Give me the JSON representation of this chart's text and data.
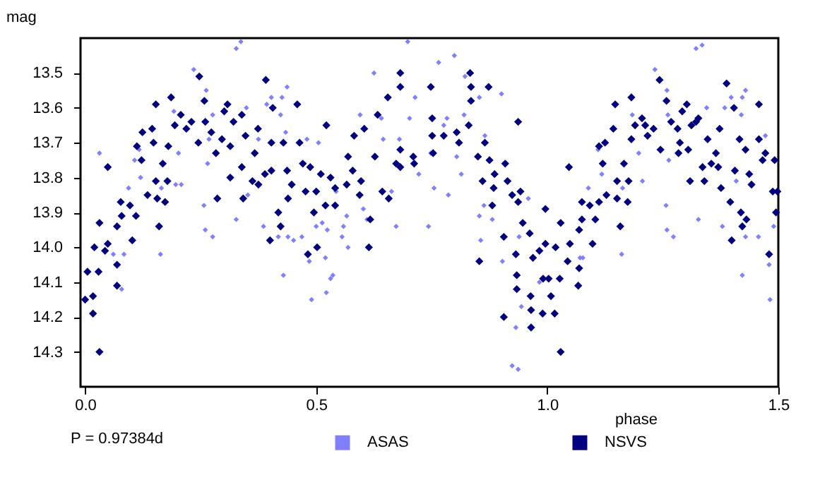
{
  "chart_data": {
    "type": "scatter",
    "xlabel": "phase",
    "ylabel": "mag",
    "annotations": [
      "P = 0.97384d"
    ],
    "xlim": [
      -0.01,
      1.5
    ],
    "ylim": [
      14.4,
      13.4
    ],
    "xticks": [
      {
        "value": 0,
        "label": "0.0"
      },
      0.5,
      {
        "value": 1,
        "label": "1.0"
      },
      1.5
    ],
    "yticks": [
      13.5,
      13.6,
      13.7,
      13.8,
      13.9,
      {
        "value": 14,
        "label": "14.0"
      },
      14.1,
      14.2,
      14.3
    ],
    "grid": false,
    "legend": "bottom",
    "marker": "diamond",
    "series": [
      {
        "name": "ASAS",
        "color": "#8080ff",
        "x": [
          0.031,
          0.061,
          0.084,
          0.079,
          0.094,
          0.107,
          0.117,
          0.12,
          0.163,
          0.165,
          0.192,
          0.196,
          0.202,
          0.208,
          0.235,
          0.257,
          0.26,
          0.262,
          0.265,
          0.268,
          0.276,
          0.276,
          0.327,
          0.337,
          0.327,
          0.349,
          0.352,
          0.375,
          0.386,
          0.393,
          0.403,
          0.418,
          0.423,
          0.426,
          0.429,
          0.434,
          0.437,
          0.439,
          0.451,
          0.469,
          0.48,
          0.485,
          0.49,
          0.5,
          0.505,
          0.513,
          0.52,
          0.522,
          0.524,
          0.531,
          0.536,
          0.543,
          0.556,
          0.559,
          0.566,
          0.569,
          0.595,
          0.602,
          0.61,
          0.625,
          0.641,
          0.645,
          0.663,
          0.673,
          0.68,
          0.698,
          0.702,
          0.714,
          0.722,
          0.743,
          0.748,
          0.755,
          0.765,
          0.776,
          0.783,
          0.786,
          0.799,
          0.804,
          0.814,
          0.82,
          0.822,
          0.853,
          0.853,
          0.856,
          0.863,
          0.865,
          0.881,
          0.901,
          0.903,
          0.924,
          0.932,
          0.937,
          0.939,
          0.944,
          0.959,
          0.983,
          1.071,
          1.077,
          1.089,
          1.11,
          1.118,
          1.161,
          1.163,
          1.184,
          1.198,
          1.206,
          1.233,
          1.257,
          1.259,
          1.261,
          1.263,
          1.259,
          1.273,
          1.322,
          1.335,
          1.327,
          1.345,
          1.379,
          1.384,
          1.398,
          1.409,
          1.42,
          1.422,
          1.422,
          1.429,
          1.429,
          1.457,
          1.472,
          1.48,
          1.482,
          1.49
        ],
        "values": [
          13.73,
          14.02,
          14.02,
          14.12,
          13.83,
          13.75,
          13.72,
          13.8,
          14.02,
          13.83,
          13.61,
          13.82,
          13.73,
          13.82,
          13.49,
          13.88,
          13.95,
          13.55,
          13.76,
          13.69,
          13.97,
          13.62,
          13.43,
          13.41,
          13.92,
          13.6,
          13.85,
          13.69,
          13.94,
          13.59,
          13.57,
          13.97,
          13.62,
          13.57,
          14.08,
          13.67,
          13.54,
          13.97,
          13.98,
          13.97,
          13.69,
          14.04,
          14.15,
          13.94,
          13.7,
          13.93,
          14.03,
          14.13,
          13.95,
          14.09,
          14.08,
          13.84,
          13.97,
          13.94,
          13.91,
          14.0,
          13.62,
          13.89,
          13.92,
          13.5,
          13.63,
          13.69,
          13.84,
          13.94,
          13.69,
          13.41,
          13.63,
          13.57,
          13.79,
          13.94,
          13.73,
          13.83,
          13.47,
          13.65,
          13.63,
          13.85,
          13.45,
          13.74,
          13.79,
          13.62,
          13.51,
          13.57,
          13.91,
          13.98,
          13.88,
          13.68,
          13.92,
          13.56,
          14.04,
          14.34,
          14.23,
          14.35,
          13.97,
          14.17,
          13.86,
          14.1,
          14.03,
          14.03,
          13.83,
          13.72,
          13.79,
          14.02,
          13.83,
          13.62,
          13.73,
          13.81,
          13.49,
          13.88,
          13.55,
          13.62,
          13.75,
          13.95,
          13.97,
          13.43,
          13.42,
          13.92,
          13.6,
          13.94,
          13.6,
          13.57,
          13.81,
          13.62,
          14.08,
          13.57,
          13.55,
          13.97,
          13.97,
          13.68,
          14.05,
          14.15,
          13.94
        ]
      },
      {
        "name": "NSVS",
        "color": "#000080",
        "x": [
          0.0,
          0.005,
          0.017,
          0.017,
          0.02,
          0.029,
          0.031,
          0.031,
          0.043,
          0.049,
          0.049,
          0.069,
          0.069,
          0.069,
          0.077,
          0.079,
          0.097,
          0.102,
          0.11,
          0.112,
          0.124,
          0.122,
          0.135,
          0.145,
          0.148,
          0.153,
          0.153,
          0.156,
          0.16,
          0.168,
          0.173,
          0.178,
          0.18,
          0.186,
          0.194,
          0.207,
          0.219,
          0.23,
          0.245,
          0.247,
          0.258,
          0.26,
          0.273,
          0.283,
          0.286,
          0.296,
          0.301,
          0.308,
          0.314,
          0.314,
          0.321,
          0.339,
          0.342,
          0.339,
          0.347,
          0.362,
          0.367,
          0.374,
          0.375,
          0.389,
          0.391,
          0.403,
          0.403,
          0.406,
          0.4,
          0.418,
          0.423,
          0.429,
          0.437,
          0.439,
          0.447,
          0.459,
          0.464,
          0.471,
          0.477,
          0.482,
          0.487,
          0.495,
          0.5,
          0.502,
          0.51,
          0.52,
          0.522,
          0.531,
          0.541,
          0.541,
          0.566,
          0.569,
          0.579,
          0.582,
          0.594,
          0.597,
          0.604,
          0.614,
          0.617,
          0.627,
          0.633,
          0.643,
          0.655,
          0.657,
          0.673,
          0.682,
          0.682,
          0.682,
          0.682,
          0.71,
          0.712,
          0.748,
          0.751,
          0.751,
          0.753,
          0.776,
          0.804,
          0.809,
          0.83,
          0.833,
          0.835,
          0.835,
          0.85,
          0.853,
          0.86,
          0.865,
          0.873,
          0.875,
          0.881,
          0.884,
          0.886,
          0.906,
          0.906,
          0.909,
          0.914,
          0.924,
          0.932,
          0.934,
          0.934,
          0.937,
          0.937,
          0.942,
          0.947,
          0.962,
          0.964,
          0.965,
          0.965,
          0.969,
          0.983,
          0.99,
          0.991,
          0.996,
          0.996,
          1.003,
          1.008,
          1.016,
          1.018,
          1.027,
          1.029,
          1.029,
          1.044,
          1.047,
          1.049,
          1.067,
          1.069,
          1.069,
          1.075,
          1.075,
          1.092,
          1.098,
          1.104,
          1.112,
          1.112,
          1.12,
          1.125,
          1.128,
          1.143,
          1.147,
          1.151,
          1.151,
          1.158,
          1.166,
          1.174,
          1.176,
          1.182,
          1.182,
          1.19,
          1.205,
          1.212,
          1.217,
          1.23,
          1.243,
          1.245,
          1.258,
          1.268,
          1.282,
          1.284,
          1.287,
          1.292,
          1.302,
          1.309,
          1.305,
          1.312,
          1.322,
          1.327,
          1.336,
          1.34,
          1.347,
          1.355,
          1.365,
          1.37,
          1.373,
          1.376,
          1.388,
          1.396,
          1.399,
          1.404,
          1.406,
          1.416,
          1.419,
          1.422,
          1.429,
          1.431,
          1.437,
          1.442,
          1.458,
          1.458,
          1.466,
          1.472,
          1.48,
          1.488,
          1.492,
          1.495,
          1.498
        ],
        "values": [
          14.15,
          14.07,
          14.14,
          14.19,
          14.0,
          14.07,
          13.93,
          14.3,
          14.01,
          13.77,
          13.99,
          13.94,
          14.05,
          14.11,
          13.87,
          13.91,
          13.88,
          13.98,
          13.91,
          13.71,
          13.67,
          13.75,
          13.85,
          13.66,
          13.7,
          13.59,
          13.81,
          13.86,
          13.94,
          13.76,
          13.87,
          13.81,
          13.71,
          13.57,
          13.65,
          13.62,
          13.66,
          13.64,
          13.7,
          13.51,
          13.58,
          13.64,
          13.67,
          13.73,
          13.86,
          13.69,
          13.61,
          13.59,
          13.71,
          13.8,
          13.64,
          13.77,
          13.86,
          13.62,
          13.68,
          13.81,
          13.73,
          13.66,
          13.82,
          13.79,
          13.52,
          13.78,
          13.7,
          13.6,
          13.98,
          13.9,
          13.94,
          13.7,
          13.78,
          13.86,
          13.82,
          13.59,
          13.7,
          13.76,
          13.84,
          14.02,
          13.77,
          13.9,
          13.84,
          14.0,
          13.79,
          13.88,
          13.65,
          13.8,
          13.88,
          13.83,
          13.82,
          13.74,
          13.78,
          13.68,
          13.85,
          13.81,
          13.66,
          14.0,
          13.92,
          13.74,
          13.62,
          13.84,
          13.57,
          13.86,
          13.76,
          13.5,
          13.54,
          13.77,
          13.72,
          13.74,
          13.76,
          13.54,
          13.63,
          13.68,
          13.73,
          13.68,
          13.67,
          13.7,
          13.65,
          13.5,
          13.54,
          13.58,
          13.74,
          14.04,
          13.81,
          13.7,
          13.54,
          13.75,
          13.88,
          13.83,
          13.79,
          14.2,
          13.97,
          13.76,
          13.81,
          13.85,
          14.02,
          14.08,
          14.12,
          13.64,
          13.87,
          13.84,
          13.93,
          13.96,
          14.14,
          14.23,
          14.18,
          14.03,
          14.01,
          14.19,
          14.09,
          13.99,
          13.89,
          14.09,
          14.14,
          14.19,
          14.0,
          14.09,
          14.3,
          13.93,
          14.04,
          13.77,
          13.99,
          14.11,
          13.95,
          14.06,
          13.92,
          13.87,
          13.88,
          13.99,
          13.92,
          13.71,
          13.87,
          13.76,
          13.7,
          13.85,
          13.66,
          13.59,
          13.81,
          13.86,
          13.94,
          13.76,
          13.87,
          13.81,
          13.57,
          13.69,
          13.65,
          13.63,
          13.65,
          13.68,
          13.66,
          13.52,
          13.72,
          13.58,
          13.64,
          13.66,
          13.73,
          13.7,
          13.61,
          13.59,
          13.81,
          13.72,
          13.65,
          13.64,
          13.63,
          13.77,
          13.81,
          13.69,
          13.76,
          13.73,
          13.77,
          13.66,
          13.83,
          13.53,
          13.87,
          13.98,
          13.6,
          13.78,
          13.69,
          13.9,
          13.94,
          13.72,
          13.92,
          13.79,
          13.82,
          13.59,
          13.69,
          13.75,
          13.73,
          14.02,
          13.84,
          13.75,
          13.9,
          13.84
        ]
      }
    ]
  }
}
